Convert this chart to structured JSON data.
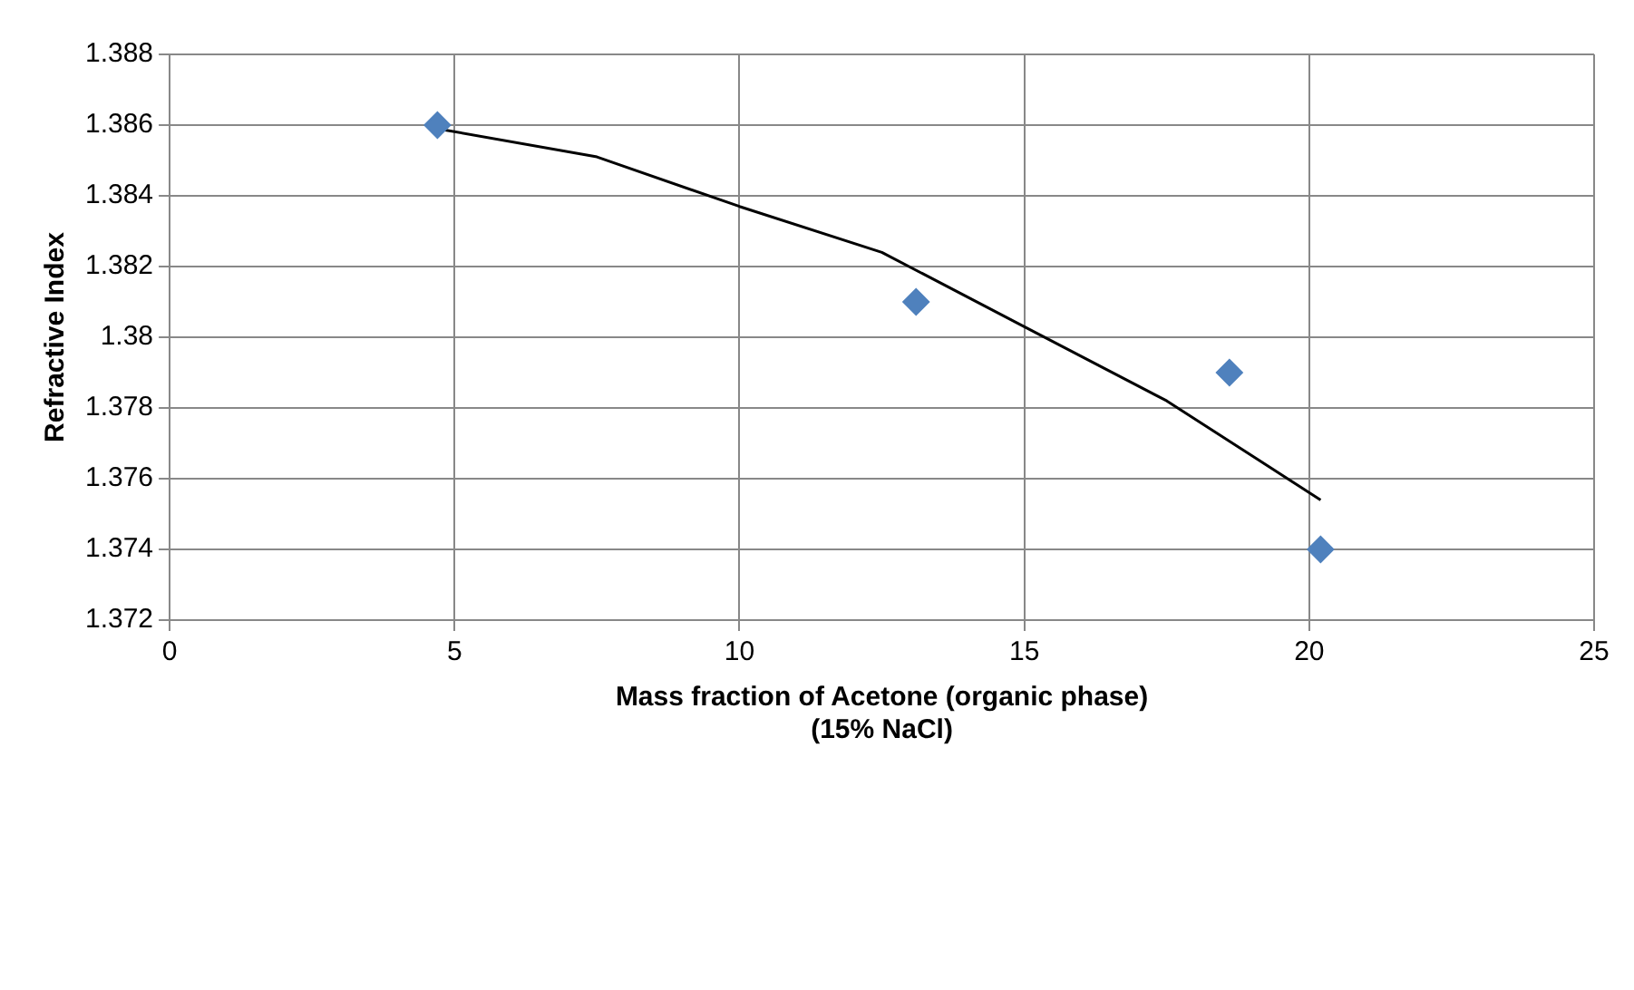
{
  "chart_data": {
    "type": "scatter",
    "xlabel": "Mass fraction of Acetone (organic phase)\n(15% NaCl)",
    "ylabel": "Refractive Index",
    "marker": "diamond",
    "grid": true,
    "legend": false,
    "xlim": [
      0,
      25
    ],
    "xticks": [
      0,
      5,
      10,
      15,
      20,
      25
    ],
    "ylim": [
      1.372,
      1.388
    ],
    "yticks": [
      1.372,
      1.374,
      1.376,
      1.378,
      1.38,
      1.382,
      1.384,
      1.386,
      1.388
    ],
    "series": [
      {
        "color": "#4f81bd",
        "x": [
          4.7,
          13.1,
          18.6,
          20.2
        ],
        "values": [
          1.386,
          1.381,
          1.379,
          1.374
        ]
      },
      {
        "type": "line",
        "color": "#000000",
        "marker": "none",
        "x": [
          4.7,
          7.5,
          10,
          12.5,
          15,
          17.5,
          20.2
        ],
        "values": [
          1.3859,
          1.3851,
          1.3837,
          1.3824,
          1.3803,
          1.3782,
          1.3754
        ]
      }
    ]
  }
}
